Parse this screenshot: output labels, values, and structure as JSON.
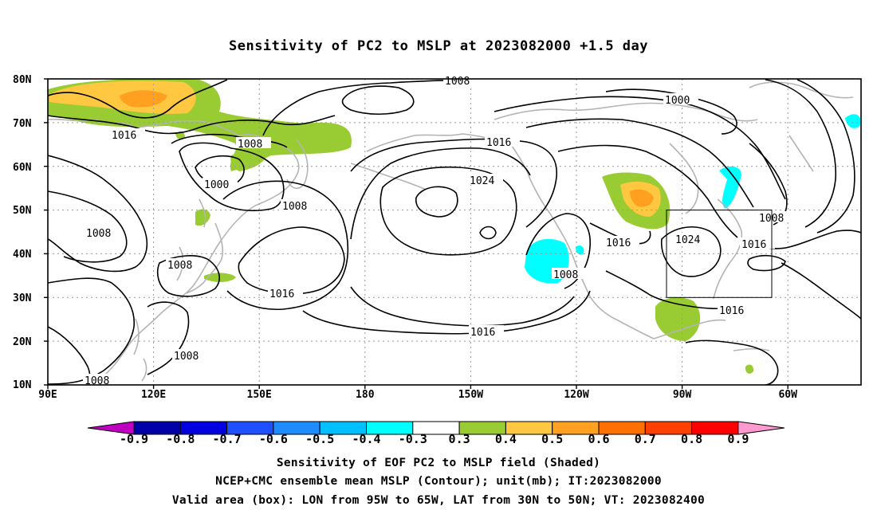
{
  "title": "Sensitivity of PC2 to MSLP at 2023082000 +1.5 day",
  "map": {
    "lat_labels": [
      "80N",
      "70N",
      "60N",
      "50N",
      "40N",
      "30N",
      "20N",
      "10N"
    ],
    "lon_labels": [
      "90E",
      "120E",
      "150E",
      "180",
      "150W",
      "120W",
      "90W",
      "60W"
    ],
    "contour_labels": [
      "1008",
      "1000",
      "1016",
      "1008",
      "1000",
      "1008",
      "1024",
      "1008",
      "1016",
      "1008",
      "1016",
      "1024",
      "1008",
      "1016",
      "1016",
      "1008",
      "1008",
      "1016",
      "1008"
    ],
    "box_label": "Valid area"
  },
  "colorbar": {
    "labels": [
      "-0.9",
      "-0.8",
      "-0.7",
      "-0.6",
      "-0.5",
      "-0.4",
      "-0.3",
      "0.3",
      "0.4",
      "0.5",
      "0.6",
      "0.7",
      "0.8",
      "0.9"
    ],
    "colors": [
      "#c000c0",
      "#0000a8",
      "#0000e0",
      "#1e50ff",
      "#1e8cff",
      "#00c0ff",
      "#00ffff",
      "#ffffff",
      "#99cc33",
      "#ffc840",
      "#ffa020",
      "#ff7000",
      "#ff4000",
      "#ff0000",
      "#ff9ad0"
    ]
  },
  "colors": {
    "positive_green": "#99cc33",
    "positive_yellow": "#ffc840",
    "positive_orange": "#ffa020",
    "negative_cyan": "#00ffff",
    "coastline": "#b4b4b4",
    "contour": "#000000"
  },
  "captions": {
    "line1": "Sensitivity of EOF PC2 to MSLP field (Shaded)",
    "line2": "NCEP+CMC ensemble mean MSLP (Contour); unit(mb); IT:2023082000",
    "line3": "Valid area (box): LON from 95W to 65W, LAT from 30N to 50N; VT: 2023082400"
  }
}
